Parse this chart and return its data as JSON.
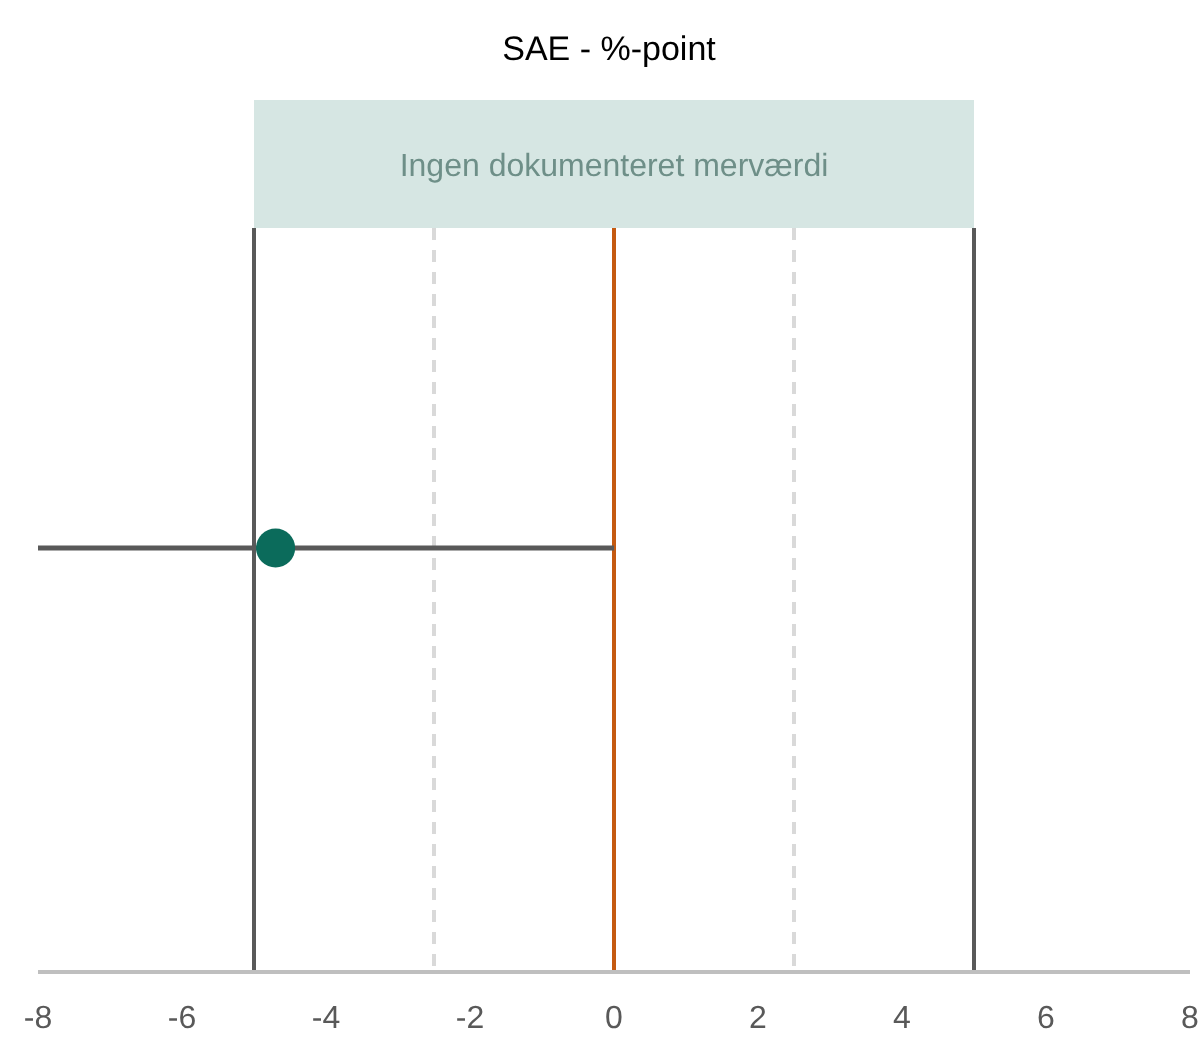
{
  "chart_data": {
    "type": "scatter",
    "title": "SAE - %-point",
    "categories": [
      null
    ],
    "series": [
      {
        "color": "#0b6b5b",
        "values": [
          -4.7
        ],
        "errors": [
          [
            -8,
            0
          ]
        ]
      }
    ],
    "orientation": "horizontal",
    "marker": "circle",
    "xlim": [
      -8,
      8
    ],
    "xticks": [
      -8,
      -6,
      -4,
      -2,
      0,
      2,
      4,
      6,
      8
    ],
    "grid": false,
    "ref_lines": [
      {
        "axis": "x",
        "value": -5,
        "color": "#595959",
        "line_style": "solid"
      },
      {
        "axis": "x",
        "value": 5,
        "color": "#595959",
        "line_style": "solid"
      },
      {
        "axis": "x",
        "value": -2.5,
        "color": "#d9d9d9",
        "line_style": "dashed"
      },
      {
        "axis": "x",
        "value": 2.5,
        "color": "#d9d9d9",
        "line_style": "dashed"
      },
      {
        "axis": "x",
        "value": 0,
        "color": "#c55a11",
        "line_style": "solid"
      }
    ],
    "annotations": [
      "Ingen dokumenteret merværdi"
    ]
  }
}
